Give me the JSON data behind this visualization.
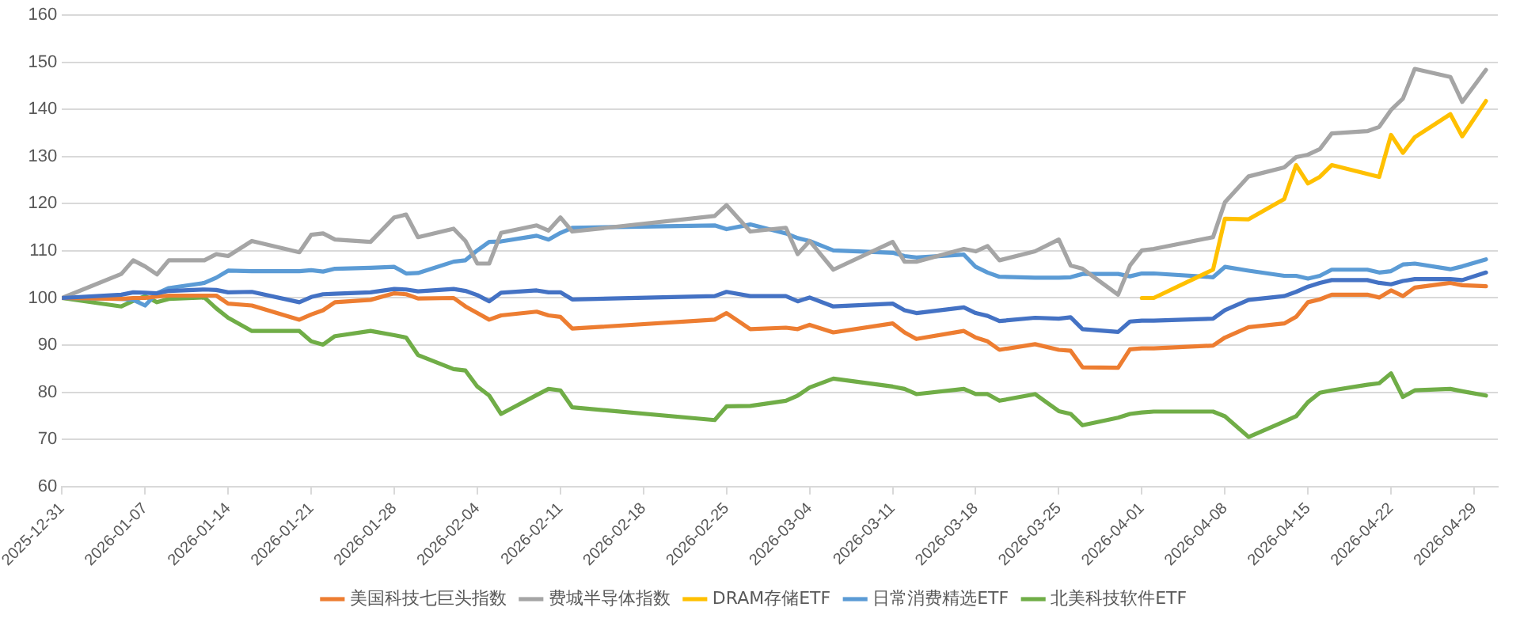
{
  "chart_data": {
    "type": "line",
    "x": [
      "2025-12-31",
      "2026-01-05",
      "2026-01-06",
      "2026-01-07",
      "2026-01-08",
      "2026-01-09",
      "2026-01-12",
      "2026-01-13",
      "2026-01-14",
      "2026-01-16",
      "2026-01-20",
      "2026-01-21",
      "2026-01-22",
      "2026-01-23",
      "2026-01-26",
      "2026-01-28",
      "2026-01-29",
      "2026-01-30",
      "2026-02-02",
      "2026-02-03",
      "2026-02-04",
      "2026-02-05",
      "2026-02-06",
      "2026-02-09",
      "2026-02-10",
      "2026-02-11",
      "2026-02-12",
      "2026-02-24",
      "2026-02-25",
      "2026-02-27",
      "2026-03-02",
      "2026-03-03",
      "2026-03-04",
      "2026-03-06",
      "2026-03-11",
      "2026-03-12",
      "2026-03-13",
      "2026-03-17",
      "2026-03-18",
      "2026-03-19",
      "2026-03-20",
      "2026-03-23",
      "2026-03-25",
      "2026-03-26",
      "2026-03-27",
      "2026-03-30",
      "2026-03-31",
      "2026-04-01",
      "2026-04-02",
      "2026-04-07",
      "2026-04-08",
      "2026-04-10",
      "2026-04-13",
      "2026-04-14",
      "2026-04-15",
      "2026-04-16",
      "2026-04-17",
      "2026-04-20",
      "2026-04-21",
      "2026-04-22",
      "2026-04-23",
      "2026-04-24",
      "2026-04-27",
      "2026-04-28",
      "2026-04-30"
    ],
    "series": [
      {
        "color": "#4472c4",
        "values": [
          100,
          100.7,
          101.2,
          101.1,
          101,
          101.5,
          101.8,
          101.7,
          101.2,
          101.3,
          99.1,
          100.2,
          100.8,
          100.9,
          101.2,
          101.9,
          101.8,
          101.4,
          101.9,
          101.5,
          100.6,
          99.3,
          101.1,
          101.6,
          101.2,
          101.2,
          99.7,
          100.4,
          101.3,
          100.4,
          100.4,
          99.3,
          100.1,
          98.2,
          98.8,
          97.4,
          96.8,
          98,
          96.8,
          96.2,
          95.1,
          95.8,
          95.6,
          95.9,
          93.4,
          92.8,
          95,
          95.2,
          95.2,
          95.6,
          97.4,
          99.6,
          100.4,
          101.3,
          102.4,
          103.2,
          103.8,
          103.8,
          103.2,
          102.9,
          103.6,
          104,
          104,
          103.8,
          105.4
        ]
      },
      {
        "name": "美国科技七巨头指数",
        "color": "#ed7d31",
        "values": [
          100,
          99.8,
          100,
          100,
          100.3,
          100.5,
          100.5,
          100.5,
          98.8,
          98.4,
          95.4,
          96.5,
          97.4,
          99.1,
          99.6,
          101,
          100.8,
          99.9,
          100,
          98.2,
          96.8,
          95.4,
          96.3,
          97.1,
          96.3,
          96,
          93.5,
          95.4,
          96.8,
          93.4,
          93.7,
          93.4,
          94.3,
          92.7,
          94.6,
          92.7,
          91.3,
          93,
          91.6,
          90.8,
          89,
          90.2,
          89,
          88.8,
          85.3,
          85.2,
          89.1,
          89.3,
          89.3,
          89.9,
          91.6,
          93.8,
          94.6,
          96,
          99.1,
          99.7,
          100.7,
          100.7,
          100.1,
          101.6,
          100.4,
          102.2,
          103.2,
          102.7,
          102.5
        ]
      },
      {
        "name": "费城半导体指数",
        "color": "#a5a5a5",
        "values": [
          100,
          105.1,
          108,
          106.7,
          105,
          108,
          108,
          109.3,
          108.9,
          112.1,
          109.7,
          113.4,
          113.7,
          112.4,
          111.9,
          117.1,
          117.7,
          112.9,
          114.7,
          112.1,
          107.3,
          107.3,
          113.8,
          115.4,
          114.3,
          117.1,
          114.1,
          117.4,
          119.7,
          114.1,
          114.9,
          109.3,
          112.1,
          106,
          111.9,
          107.7,
          107.7,
          110.4,
          109.9,
          111,
          108,
          109.9,
          112.4,
          106.9,
          106.2,
          100.7,
          106.9,
          110.1,
          110.4,
          112.9,
          120.3,
          125.8,
          127.7,
          129.9,
          130.4,
          131.6,
          134.9,
          135.4,
          136.3,
          139.9,
          142.3,
          148.6,
          146.9,
          141.6,
          148.4
        ]
      },
      {
        "name": "DRAM存储ETF",
        "color": "#ffc000",
        "x": [
          "2026-04-01",
          "2026-04-02",
          "2026-04-07",
          "2026-04-08",
          "2026-04-10",
          "2026-04-13",
          "2026-04-14",
          "2026-04-15",
          "2026-04-16",
          "2026-04-17",
          "2026-04-21",
          "2026-04-22",
          "2026-04-23",
          "2026-04-24",
          "2026-04-27",
          "2026-04-28",
          "2026-04-30"
        ],
        "values": [
          100,
          100,
          106,
          116.8,
          116.7,
          121,
          128.2,
          124.3,
          125.7,
          128.2,
          125.7,
          134.6,
          130.8,
          134.1,
          139,
          134.3,
          141.8
        ]
      },
      {
        "name": "日常消费精选ETF",
        "color": "#5b9bd5",
        "values": [
          100,
          99.8,
          99.6,
          98.4,
          101,
          102.1,
          103.2,
          104.3,
          105.8,
          105.7,
          105.7,
          105.9,
          105.6,
          106.2,
          106.4,
          106.6,
          105.2,
          105.3,
          107.7,
          108,
          110.1,
          111.9,
          112,
          113.2,
          112.4,
          113.8,
          114.9,
          115.4,
          114.6,
          115.6,
          113.7,
          112.7,
          112.1,
          110.1,
          109.6,
          108.9,
          108.6,
          109.2,
          106.6,
          105.4,
          104.5,
          104.3,
          104.3,
          104.4,
          105.1,
          105.1,
          104.6,
          105.2,
          105.2,
          104.4,
          106.6,
          105.8,
          104.7,
          104.7,
          104.1,
          104.7,
          106,
          106,
          105.4,
          105.7,
          107.1,
          107.3,
          106.1,
          106.7,
          108.2
        ]
      },
      {
        "name": "北美科技软件ETF",
        "color": "#70ad47",
        "values": [
          100,
          98.2,
          99.4,
          100.4,
          99.1,
          99.8,
          100.1,
          97.8,
          95.8,
          93,
          93,
          90.8,
          90.1,
          91.9,
          93,
          92.1,
          91.6,
          87.9,
          84.9,
          84.6,
          81.2,
          79.3,
          75.4,
          79.4,
          80.7,
          80.4,
          76.8,
          74.1,
          77,
          77.1,
          78.2,
          79.3,
          81,
          82.9,
          81.2,
          80.7,
          79.6,
          80.7,
          79.6,
          79.6,
          78.2,
          79.6,
          76,
          75.4,
          73,
          74.6,
          75.4,
          75.7,
          75.9,
          75.9,
          74.9,
          70.5,
          73.8,
          74.9,
          77.9,
          79.9,
          80.4,
          81.6,
          81.9,
          84,
          79,
          80.4,
          80.7,
          80.2,
          79.3
        ]
      }
    ],
    "xlim": [
      "2025-12-31",
      "2026-05-01"
    ],
    "xticks": [
      "2025-12-31",
      "2026-01-07",
      "2026-01-14",
      "2026-01-21",
      "2026-01-28",
      "2026-02-04",
      "2026-02-11",
      "2026-02-18",
      "2026-02-25",
      "2026-03-04",
      "2026-03-11",
      "2026-03-18",
      "2026-03-25",
      "2026-04-01",
      "2026-04-08",
      "2026-04-15",
      "2026-04-22",
      "2026-04-29"
    ],
    "ylim": [
      60,
      160
    ],
    "yticks": [
      60,
      70,
      80,
      90,
      100,
      110,
      120,
      130,
      140,
      150,
      160
    ],
    "grid": "y",
    "legend": "bottom",
    "marker": "none"
  }
}
